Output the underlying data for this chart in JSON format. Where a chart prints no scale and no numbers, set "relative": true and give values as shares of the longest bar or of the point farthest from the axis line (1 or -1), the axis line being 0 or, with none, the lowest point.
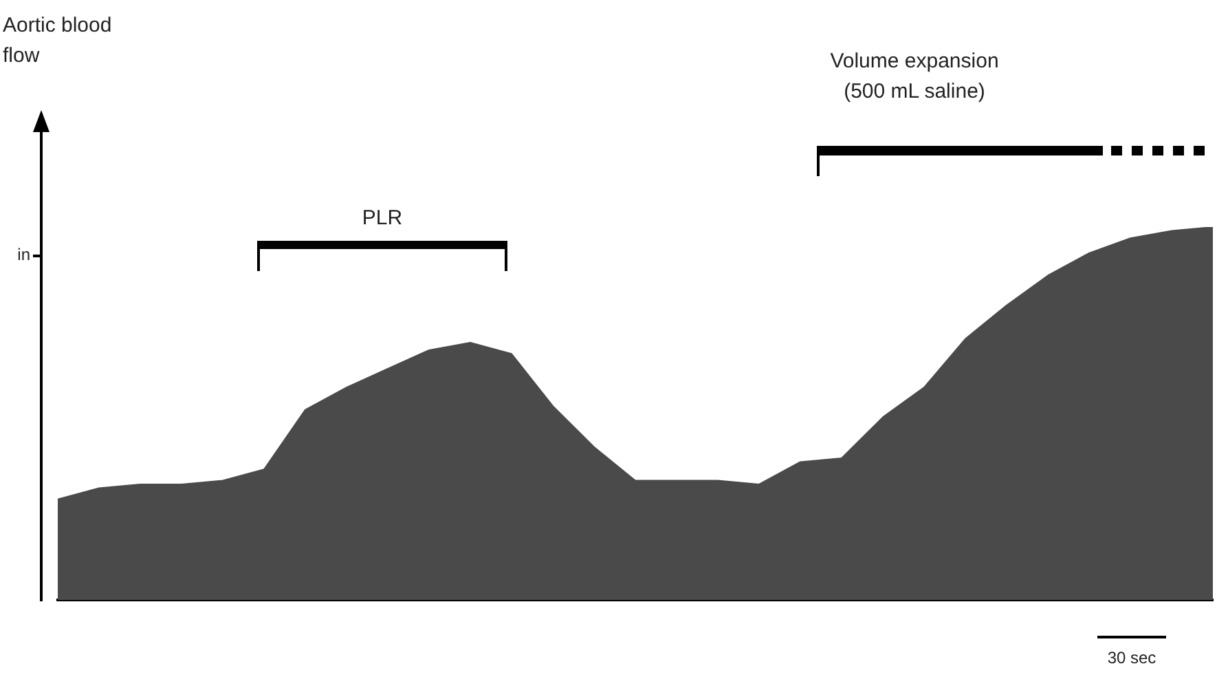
{
  "chart_data": {
    "type": "area",
    "relative": true,
    "categories": [
      null,
      null,
      null,
      null,
      null,
      null,
      null,
      null,
      null,
      null,
      null,
      null,
      null,
      null,
      null,
      null,
      null,
      null,
      null,
      null,
      null,
      null,
      null,
      null,
      null,
      null,
      null,
      null,
      null
    ],
    "series": [
      {
        "color": "#4a4a4a",
        "values": [
          0.27,
          0.3,
          0.31,
          0.31,
          0.32,
          0.35,
          0.51,
          0.57,
          0.62,
          0.67,
          0.69,
          0.66,
          0.52,
          0.41,
          0.32,
          0.32,
          0.32,
          0.31,
          0.37,
          0.38,
          0.49,
          0.57,
          0.7,
          0.79,
          0.87,
          0.93,
          0.97,
          0.99,
          1
        ]
      }
    ],
    "annotations": [
      "PLR",
      "Volume expansion (500 mL saline)",
      "30 sec",
      "in",
      "Aortic blood flow"
    ],
    "grid": false,
    "legend": false
  }
}
